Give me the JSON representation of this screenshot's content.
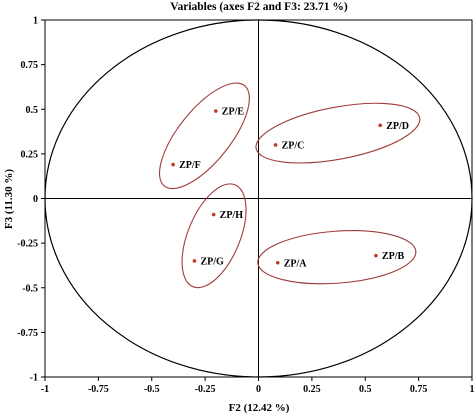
{
  "chart_data": {
    "type": "scatter",
    "title": "Variables (axes F2 and F3: 23.71 %)",
    "xlabel": "F2 (12.42 %)",
    "ylabel": "F3 (11.30 %)",
    "xlim": [
      -1,
      1
    ],
    "ylim": [
      -1,
      1
    ],
    "x_ticks": [
      "-1",
      "-0.75",
      "-0.5",
      "-0.25",
      "0",
      "0.25",
      "0.5",
      "0.75",
      "1"
    ],
    "y_ticks": [
      "1",
      "0.75",
      "0.5",
      "0.25",
      "0",
      "-0.25",
      "-0.5",
      "-0.75",
      "-1"
    ],
    "points": [
      {
        "label": "ZP/E",
        "x": -0.2,
        "y": 0.49
      },
      {
        "label": "ZP/D",
        "x": 0.57,
        "y": 0.41
      },
      {
        "label": "ZP/C",
        "x": 0.08,
        "y": 0.3
      },
      {
        "label": "ZP/F",
        "x": -0.4,
        "y": 0.19
      },
      {
        "label": "ZP/H",
        "x": -0.21,
        "y": -0.09
      },
      {
        "label": "ZP/G",
        "x": -0.3,
        "y": -0.35
      },
      {
        "label": "ZP/A",
        "x": 0.09,
        "y": -0.36
      },
      {
        "label": "ZP/B",
        "x": 0.55,
        "y": -0.32
      }
    ],
    "correlation_circle": true,
    "colors": {
      "point": "#c0392b",
      "group_ellipse": "#a03a3a",
      "axis": "#000000"
    }
  }
}
